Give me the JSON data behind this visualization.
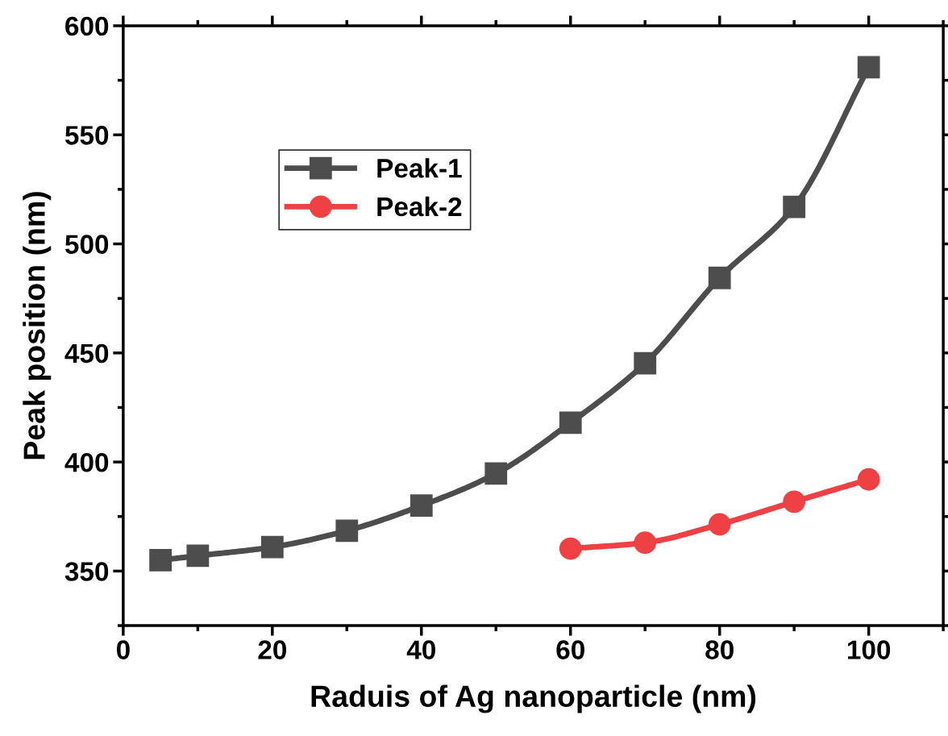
{
  "chart_data": {
    "type": "line",
    "xlabel": "Raduis of Ag nanoparticle (nm)",
    "ylabel": "Peak position (nm)",
    "xlim": [
      0,
      110
    ],
    "xticks": [
      0,
      20,
      40,
      60,
      80,
      100
    ],
    "ylim": [
      325,
      600
    ],
    "yticks": [
      350,
      400,
      450,
      500,
      550,
      600
    ],
    "legend": "top left",
    "grid": false,
    "line_style": "solid",
    "series": [
      {
        "name": "Peak-1",
        "color": "#4d4d4d",
        "marker": "square",
        "x": [
          5,
          10,
          20,
          30,
          40,
          50,
          60,
          70,
          80,
          90,
          100
        ],
        "values": [
          355,
          357,
          361,
          368.5,
          380,
          394.7,
          418,
          445.3,
          484.4,
          517,
          581
        ]
      },
      {
        "name": "Peak-2",
        "color": "#ef4043",
        "marker": "circle",
        "x": [
          60,
          70,
          80,
          90,
          100
        ],
        "values": [
          360.3,
          363,
          371.4,
          381.8,
          392
        ]
      }
    ]
  }
}
